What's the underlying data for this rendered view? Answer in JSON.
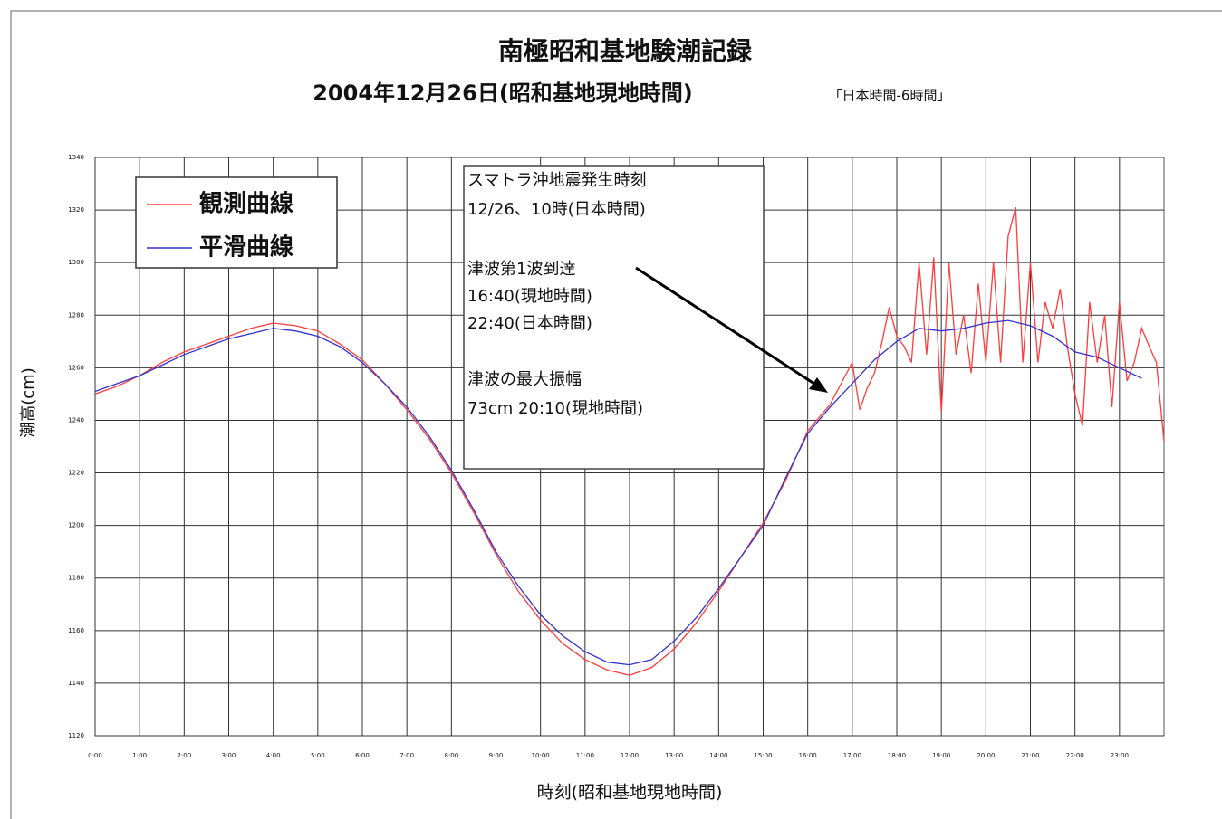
{
  "chart_data": {
    "type": "line",
    "title": "南極昭和基地験潮記録",
    "subtitle": "2004年12月26日(昭和基地現地時間)",
    "subtitle_note": "「日本時間-6時間」",
    "xlabel": "時刻(昭和基地現地時間)",
    "ylabel": "潮高(cm)",
    "annotation": [
      "スマトラ沖地震発生時刻",
      "12/26、10時(日本時間)",
      "津波第1波到達",
      "16:40(現地時間)",
      "22:40(日本時間)",
      "津波の最大振幅",
      "73cm 20:10(現地時間)"
    ],
    "xlim": [
      0,
      24
    ],
    "ylim": [
      1120,
      1340
    ],
    "xticks": [
      {
        "value": 0,
        "label": "0:00"
      },
      {
        "value": 1,
        "label": "1:00"
      },
      {
        "value": 2,
        "label": "2:00"
      },
      {
        "value": 3,
        "label": "3:00"
      },
      {
        "value": 4,
        "label": "4:00"
      },
      {
        "value": 5,
        "label": "5:00"
      },
      {
        "value": 6,
        "label": "6:00"
      },
      {
        "value": 7,
        "label": "7:00"
      },
      {
        "value": 8,
        "label": "8:00"
      },
      {
        "value": 9,
        "label": "9:00"
      },
      {
        "value": 10,
        "label": "10:00"
      },
      {
        "value": 11,
        "label": "11:00"
      },
      {
        "value": 12,
        "label": "12:00"
      },
      {
        "value": 13,
        "label": "13:00"
      },
      {
        "value": 14,
        "label": "14:00"
      },
      {
        "value": 15,
        "label": "15:00"
      },
      {
        "value": 16,
        "label": "16:00"
      },
      {
        "value": 17,
        "label": "17:00"
      },
      {
        "value": 18,
        "label": "18:00"
      },
      {
        "value": 19,
        "label": "19:00"
      },
      {
        "value": 20,
        "label": "20:00"
      },
      {
        "value": 21,
        "label": "21:00"
      },
      {
        "value": 22,
        "label": "22:00"
      },
      {
        "value": 23,
        "label": "23:00"
      }
    ],
    "yticks": [
      1120,
      1140,
      1160,
      1180,
      1200,
      1220,
      1240,
      1260,
      1280,
      1300,
      1320,
      1340
    ],
    "grid": true,
    "legend": "upper left",
    "series": [
      {
        "name": "観測曲線",
        "color": "#ff3b3b",
        "x": [
          0,
          0.5,
          1,
          1.5,
          2,
          2.5,
          3,
          3.5,
          4,
          4.5,
          5,
          5.5,
          6,
          6.5,
          7,
          7.5,
          8,
          8.5,
          9,
          9.5,
          10,
          10.5,
          11,
          11.5,
          12,
          12.5,
          13,
          13.5,
          14,
          14.5,
          15,
          15.5,
          16,
          16.5,
          17,
          17.17,
          17.33,
          17.5,
          17.67,
          17.83,
          18,
          18.17,
          18.33,
          18.5,
          18.67,
          18.83,
          19,
          19.17,
          19.33,
          19.5,
          19.67,
          19.83,
          20,
          20.17,
          20.33,
          20.5,
          20.67,
          20.83,
          21,
          21.17,
          21.33,
          21.5,
          21.67,
          21.83,
          22,
          22.17,
          22.33,
          22.5,
          22.67,
          22.83,
          23,
          23.17,
          23.33,
          23.5,
          23.67,
          23.83,
          24
        ],
        "values": [
          1250,
          1253,
          1257,
          1262,
          1266,
          1269,
          1272,
          1275,
          1277,
          1276,
          1274,
          1269,
          1263,
          1254,
          1244,
          1233,
          1220,
          1205,
          1189,
          1175,
          1164,
          1155,
          1149,
          1145,
          1143,
          1146,
          1153,
          1163,
          1175,
          1188,
          1201,
          1217,
          1236,
          1246,
          1262,
          1244,
          1252,
          1258,
          1270,
          1283,
          1272,
          1268,
          1262,
          1300,
          1265,
          1302,
          1243,
          1300,
          1265,
          1280,
          1258,
          1292,
          1262,
          1300,
          1262,
          1310,
          1321,
          1262,
          1300,
          1262,
          1285,
          1275,
          1290,
          1268,
          1250,
          1238,
          1285,
          1262,
          1280,
          1245,
          1285,
          1255,
          1262,
          1275,
          1268,
          1262,
          1232
        ]
      },
      {
        "name": "平滑曲線",
        "color": "#3333cc",
        "x": [
          0,
          0.5,
          1,
          1.5,
          2,
          2.5,
          3,
          3.5,
          4,
          4.5,
          5,
          5.5,
          6,
          6.5,
          7,
          7.5,
          8,
          8.5,
          9,
          9.5,
          10,
          10.5,
          11,
          11.5,
          12,
          12.5,
          13,
          13.5,
          14,
          14.5,
          15,
          15.5,
          16,
          16.5,
          17,
          17.5,
          18,
          18.5,
          19,
          19.5,
          20,
          20.5,
          21,
          21.5,
          22,
          22.5,
          23,
          23.5
        ],
        "values": [
          1251,
          1254,
          1257,
          1261,
          1265,
          1268,
          1271,
          1273,
          1275,
          1274,
          1272,
          1268,
          1262,
          1254,
          1245,
          1234,
          1221,
          1206,
          1190,
          1177,
          1166,
          1158,
          1152,
          1148,
          1147,
          1149,
          1156,
          1165,
          1176,
          1188,
          1200,
          1218,
          1235,
          1245,
          1254,
          1263,
          1270,
          1275,
          1274,
          1275,
          1277,
          1278,
          1276,
          1272,
          1266,
          1264,
          1260,
          1256
        ]
      }
    ]
  }
}
